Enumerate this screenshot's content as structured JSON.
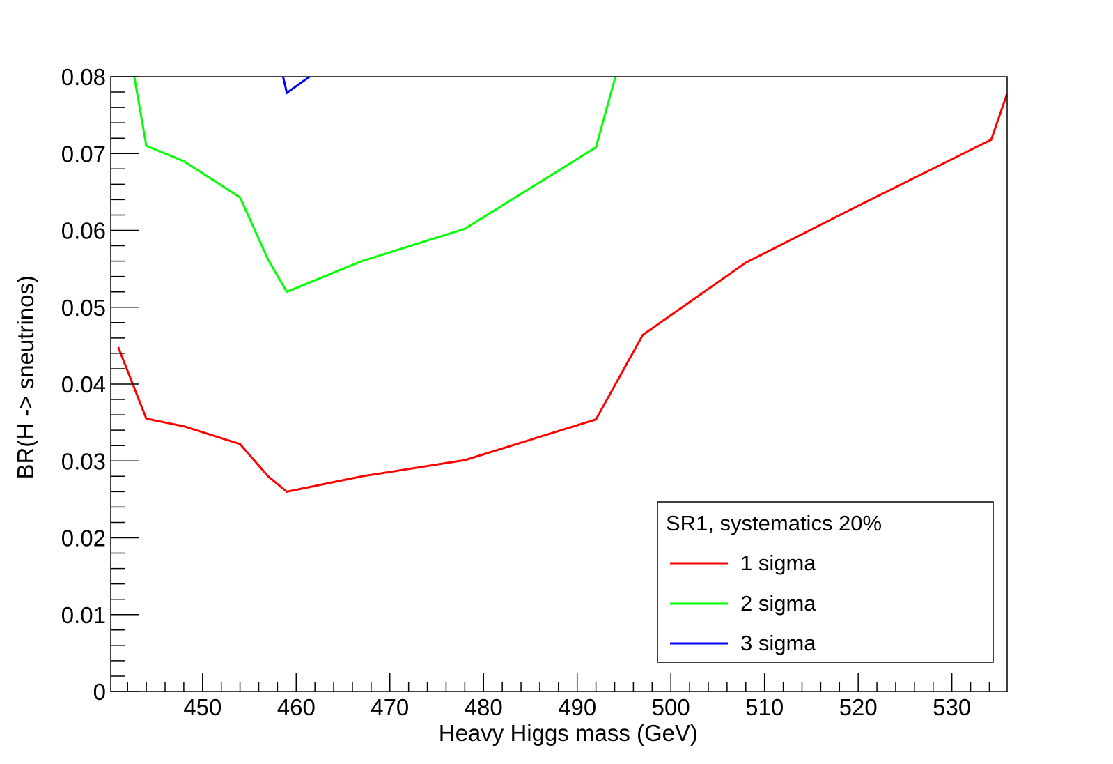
{
  "chart_data": {
    "type": "line",
    "title": "",
    "xlabel": "Heavy Higgs mass (GeV)",
    "ylabel": "BR(H -> sneutrinos)",
    "xlim": [
      440.2,
      535.9
    ],
    "ylim": [
      0,
      0.08
    ],
    "xticks": [
      {
        "value": 450,
        "label": "450"
      },
      {
        "value": 460,
        "label": "460"
      },
      {
        "value": 470,
        "label": "470"
      },
      {
        "value": 480,
        "label": "480"
      },
      {
        "value": 490,
        "label": "490"
      },
      {
        "value": 500,
        "label": "500"
      },
      {
        "value": 510,
        "label": "510"
      },
      {
        "value": 520,
        "label": "520"
      },
      {
        "value": 530,
        "label": "530"
      }
    ],
    "yticks": [
      {
        "value": 0,
        "label": "0"
      },
      {
        "value": 0.01,
        "label": "0.01"
      },
      {
        "value": 0.02,
        "label": "0.02"
      },
      {
        "value": 0.03,
        "label": "0.03"
      },
      {
        "value": 0.04,
        "label": "0.04"
      },
      {
        "value": 0.05,
        "label": "0.05"
      },
      {
        "value": 0.06,
        "label": "0.06"
      },
      {
        "value": 0.07,
        "label": "0.07"
      },
      {
        "value": 0.08,
        "label": "0.08"
      }
    ],
    "grid": false,
    "legend": {
      "placement": "bottom-right",
      "header": "SR1, systematics 20%"
    },
    "series": [
      {
        "name": "1 sigma",
        "color": "#ff0000",
        "points": [
          [
            441,
            0.0448
          ],
          [
            444,
            0.0355
          ],
          [
            448,
            0.0345
          ],
          [
            454,
            0.0322
          ],
          [
            457,
            0.028
          ],
          [
            459,
            0.026
          ],
          [
            467,
            0.028
          ],
          [
            478,
            0.0301
          ],
          [
            492,
            0.0354
          ],
          [
            497,
            0.0464
          ],
          [
            508,
            0.0558
          ],
          [
            520,
            0.0632
          ],
          [
            534.2,
            0.0718
          ],
          [
            535.9,
            0.0778
          ]
        ]
      },
      {
        "name": "2 sigma",
        "color": "#00ff00",
        "points": [
          [
            442.5,
            0.0815
          ],
          [
            444,
            0.071
          ],
          [
            448,
            0.069
          ],
          [
            454,
            0.0643
          ],
          [
            457,
            0.0562
          ],
          [
            459,
            0.052
          ],
          [
            467,
            0.056
          ],
          [
            478,
            0.0602
          ],
          [
            492,
            0.0708
          ],
          [
            494.2,
            0.0805
          ]
        ]
      },
      {
        "name": "3 sigma",
        "color": "#0000ff",
        "points": [
          [
            458.5,
            0.0805
          ],
          [
            459,
            0.0779
          ],
          [
            462,
            0.0805
          ]
        ]
      }
    ]
  }
}
